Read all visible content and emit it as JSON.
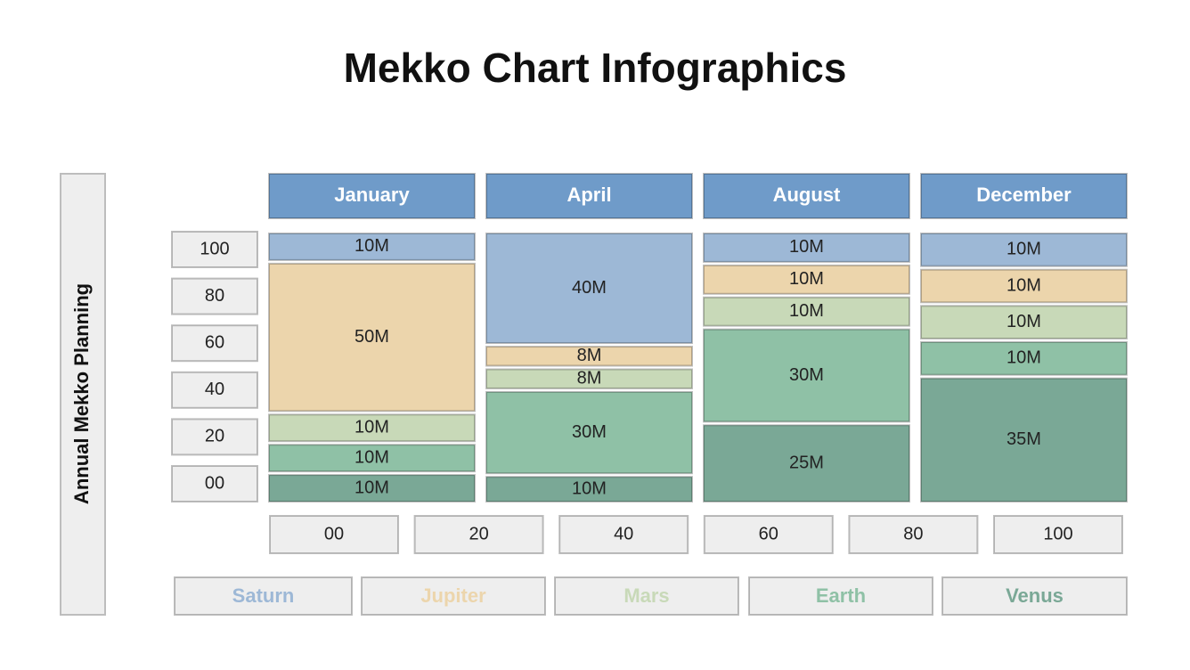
{
  "chart_data": {
    "type": "mekko",
    "title": "Mekko Chart Infographics",
    "y_label": "Annual Mekko Planning",
    "categories": [
      "January",
      "April",
      "August",
      "December"
    ],
    "series": [
      {
        "name": "Saturn",
        "color": "#9db8d6",
        "values": [
          10,
          40,
          10,
          10
        ],
        "value_labels": [
          "10M",
          "40M",
          "10M",
          "10M"
        ]
      },
      {
        "name": "Jupiter",
        "color": "#ecd5ac",
        "values": [
          50,
          8,
          10,
          10
        ],
        "value_labels": [
          "50M",
          "8M",
          "10M",
          "10M"
        ]
      },
      {
        "name": "Mars",
        "color": "#c8d9b8",
        "values": [
          10,
          8,
          10,
          10
        ],
        "value_labels": [
          "10M",
          "8M",
          "10M",
          "10M"
        ]
      },
      {
        "name": "Earth",
        "color": "#8fc1a6",
        "values": [
          10,
          30,
          30,
          10
        ],
        "value_labels": [
          "10M",
          "30M",
          "30M",
          "10M"
        ]
      },
      {
        "name": "Venus",
        "color": "#7aa896",
        "values": [
          10,
          10,
          25,
          35
        ],
        "value_labels": [
          "10M",
          "10M",
          "25M",
          "35M"
        ]
      }
    ],
    "header_color": "#6f9bc9",
    "ylim": [
      0,
      100
    ],
    "yticks": [
      {
        "value": 0,
        "label": "00"
      },
      20,
      40,
      60,
      80,
      100
    ],
    "xlim": [
      0,
      100
    ],
    "xticks": [
      {
        "value": 0,
        "label": "00"
      },
      20,
      40,
      60,
      80,
      100
    ]
  }
}
